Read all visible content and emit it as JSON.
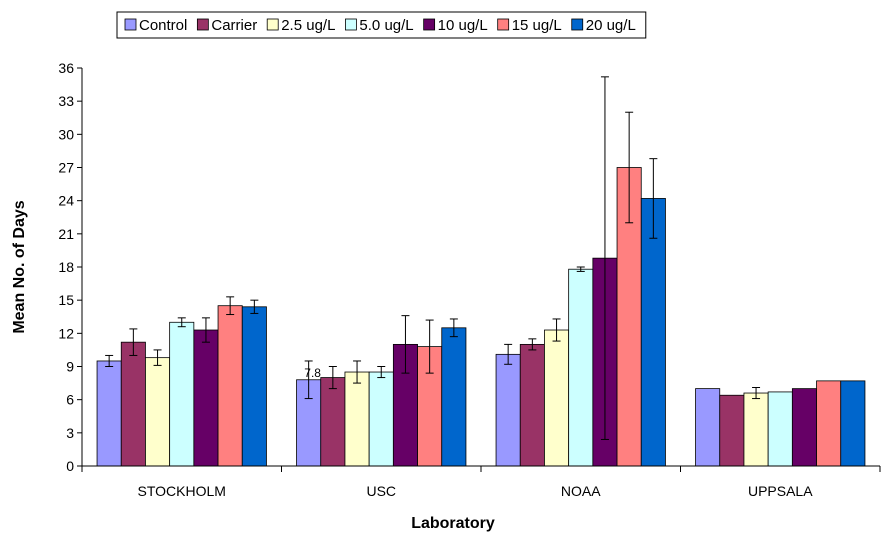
{
  "chart_data": {
    "type": "bar",
    "categories": [
      "STOCKHOLM",
      "USC",
      "NOAA",
      "UPPSALA"
    ],
    "xlabel": "Laboratory",
    "ylabel": "Mean No. of Days",
    "ylim": [
      0,
      36
    ],
    "yticks": [
      0,
      3,
      6,
      9,
      12,
      15,
      18,
      21,
      24,
      27,
      30,
      33,
      36
    ],
    "grid": false,
    "legend_position": "top",
    "series": [
      {
        "name": "Control",
        "color": "#9999ff",
        "values": [
          9.5,
          7.8,
          10.1,
          7.0
        ],
        "errors": [
          0.5,
          1.7,
          0.9,
          null
        ]
      },
      {
        "name": "Carrier",
        "color": "#993366",
        "values": [
          11.2,
          8.0,
          11.0,
          6.4
        ],
        "errors": [
          1.2,
          1.0,
          0.5,
          null
        ]
      },
      {
        "name": "2.5 ug/L",
        "color": "#ffffcc",
        "values": [
          9.8,
          8.5,
          12.3,
          6.6
        ],
        "errors": [
          0.7,
          1.0,
          1.0,
          0.5
        ]
      },
      {
        "name": "5.0 ug/L",
        "color": "#ccffff",
        "values": [
          13.0,
          8.5,
          17.8,
          6.7
        ],
        "errors": [
          0.4,
          0.5,
          0.2,
          null
        ]
      },
      {
        "name": "10 ug/L",
        "color": "#660066",
        "values": [
          12.3,
          11.0,
          18.8,
          7.0
        ],
        "errors": [
          1.1,
          2.6,
          16.4,
          null
        ]
      },
      {
        "name": "15 ug/L",
        "color": "#ff8080",
        "values": [
          14.5,
          10.8,
          27.0,
          7.7
        ],
        "errors": [
          0.8,
          2.4,
          5.0,
          null
        ]
      },
      {
        "name": "20 ug/L",
        "color": "#0066cc",
        "values": [
          14.4,
          12.5,
          24.2,
          7.7
        ],
        "errors": [
          0.6,
          0.8,
          3.6,
          null
        ]
      }
    ],
    "annotations": [
      {
        "text": "7.8",
        "category": "USC",
        "series": "Control"
      }
    ]
  }
}
